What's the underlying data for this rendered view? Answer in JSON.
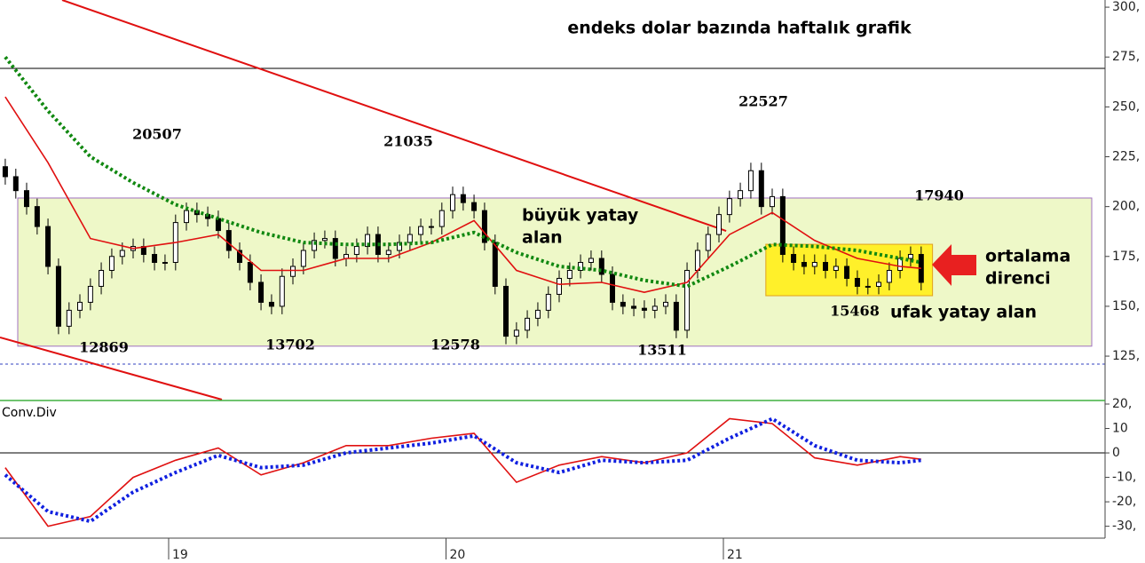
{
  "chart_data": [
    {
      "type": "candlestick",
      "title": "endeks dolar bazında haftalık grafik",
      "xlim": [
        2018.392,
        2022.376
      ],
      "ylim": [
        103.2,
        303.6
      ],
      "yticks": [
        {
          "value": 125,
          "label": "125,"
        },
        {
          "value": 150,
          "label": "150,"
        },
        {
          "value": 175,
          "label": "175,"
        },
        {
          "value": 200,
          "label": "200,"
        },
        {
          "value": 225,
          "label": "225,"
        },
        {
          "value": 250,
          "label": "250,"
        },
        {
          "value": 275,
          "label": "275,"
        },
        {
          "value": 300,
          "label": "300,"
        }
      ],
      "up_color": "#ffffff",
      "down_color": "#000000",
      "x": [
        2018.411,
        2018.449,
        2018.488,
        2018.526,
        2018.565,
        2018.603,
        2018.641,
        2018.68,
        2018.718,
        2018.757,
        2018.795,
        2018.833,
        2018.872,
        2018.91,
        2018.949,
        2018.987,
        2019.025,
        2019.064,
        2019.102,
        2019.141,
        2019.179,
        2019.217,
        2019.256,
        2019.294,
        2019.333,
        2019.371,
        2019.409,
        2019.448,
        2019.486,
        2019.525,
        2019.563,
        2019.601,
        2019.64,
        2019.678,
        2019.717,
        2019.755,
        2019.793,
        2019.832,
        2019.87,
        2019.909,
        2019.947,
        2019.985,
        2020.024,
        2020.062,
        2020.101,
        2020.139,
        2020.177,
        2020.216,
        2020.254,
        2020.293,
        2020.331,
        2020.369,
        2020.408,
        2020.446,
        2020.485,
        2020.523,
        2020.561,
        2020.6,
        2020.638,
        2020.677,
        2020.715,
        2020.753,
        2020.792,
        2020.83,
        2020.869,
        2020.907,
        2020.945,
        2020.984,
        2021.022,
        2021.061,
        2021.099,
        2021.137,
        2021.176,
        2021.214,
        2021.253,
        2021.291,
        2021.329,
        2021.368,
        2021.406,
        2021.445,
        2021.483,
        2021.521,
        2021.56,
        2021.598,
        2021.637,
        2021.675,
        2021.713
      ],
      "open": [
        220,
        215,
        208,
        200,
        190,
        170,
        140,
        148,
        152,
        160,
        168,
        175,
        178,
        180,
        176,
        172,
        172,
        192,
        198,
        196,
        194,
        188,
        178,
        172,
        162,
        152,
        150,
        165,
        170,
        178,
        183,
        184,
        174,
        176,
        180,
        186,
        176,
        178,
        182,
        186,
        190,
        190,
        198,
        206,
        202,
        198,
        182,
        160,
        135,
        138,
        144,
        148,
        156,
        164,
        168,
        172,
        174,
        166,
        152,
        150,
        149,
        148,
        150,
        152,
        138,
        168,
        178,
        186,
        196,
        204,
        208,
        218,
        200,
        205,
        176,
        172,
        170,
        172,
        168,
        170,
        164,
        160,
        160,
        162,
        168,
        174,
        176
      ],
      "high": [
        224,
        219,
        212,
        204,
        194,
        174,
        152,
        156,
        164,
        172,
        179,
        182,
        184,
        184,
        180,
        176,
        196,
        202,
        202,
        200,
        198,
        192,
        182,
        176,
        166,
        156,
        169,
        174,
        182,
        187,
        188,
        188,
        180,
        184,
        190,
        190,
        182,
        186,
        190,
        194,
        194,
        202,
        210,
        210,
        206,
        202,
        186,
        164,
        142,
        148,
        152,
        160,
        168,
        172,
        176,
        178,
        178,
        170,
        156,
        154,
        153,
        154,
        156,
        156,
        172,
        182,
        190,
        200,
        208,
        212,
        222,
        222,
        209,
        209,
        180,
        176,
        176,
        176,
        174,
        174,
        168,
        164,
        166,
        172,
        178,
        180,
        180
      ],
      "low": [
        211,
        204,
        196,
        186,
        166,
        136,
        136,
        144,
        148,
        156,
        164,
        171,
        174,
        172,
        168,
        168,
        168,
        188,
        192,
        190,
        184,
        174,
        168,
        158,
        148,
        146,
        146,
        161,
        166,
        174,
        179,
        170,
        170,
        172,
        176,
        172,
        172,
        174,
        178,
        182,
        186,
        186,
        194,
        198,
        194,
        178,
        156,
        131,
        131,
        134,
        140,
        144,
        152,
        160,
        164,
        168,
        162,
        148,
        146,
        145,
        144,
        144,
        146,
        134,
        134,
        164,
        174,
        182,
        192,
        200,
        204,
        196,
        196,
        172,
        168,
        166,
        166,
        164,
        164,
        160,
        156,
        156,
        156,
        158,
        164,
        170,
        158
      ],
      "close": [
        215,
        208,
        200,
        190,
        170,
        140,
        148,
        152,
        160,
        168,
        175,
        178,
        180,
        176,
        172,
        172,
        192,
        198,
        196,
        194,
        188,
        178,
        172,
        162,
        152,
        150,
        165,
        170,
        178,
        183,
        184,
        174,
        176,
        180,
        186,
        176,
        178,
        182,
        186,
        190,
        190,
        198,
        206,
        202,
        198,
        182,
        160,
        135,
        138,
        144,
        148,
        156,
        164,
        168,
        172,
        174,
        166,
        152,
        150,
        149,
        148,
        150,
        152,
        138,
        168,
        178,
        186,
        196,
        204,
        208,
        218,
        200,
        205,
        176,
        172,
        170,
        172,
        168,
        170,
        164,
        160,
        160,
        162,
        168,
        174,
        176,
        162
      ],
      "series": [
        {
          "color": "#e01010",
          "dash": "solid",
          "x": [
            2018.411,
            2018.565,
            2018.718,
            2018.872,
            2019.025,
            2019.179,
            2019.333,
            2019.486,
            2019.64,
            2019.793,
            2019.947,
            2020.101,
            2020.254,
            2020.408,
            2020.561,
            2020.715,
            2020.869,
            2021.022,
            2021.176,
            2021.329,
            2021.483,
            2021.637,
            2021.713
          ],
          "values": [
            255,
            222,
            184,
            179,
            182,
            186,
            168,
            168,
            174,
            174,
            182,
            193,
            168,
            161,
            162,
            157,
            162,
            186,
            197,
            183,
            174,
            170,
            169
          ]
        },
        {
          "color": "#118811",
          "dash": "dotted",
          "x": [
            2018.411,
            2018.565,
            2018.718,
            2018.872,
            2019.025,
            2019.179,
            2019.333,
            2019.486,
            2019.64,
            2019.793,
            2019.947,
            2020.101,
            2020.254,
            2020.408,
            2020.561,
            2020.715,
            2020.869,
            2021.022,
            2021.176,
            2021.329,
            2021.483,
            2021.637,
            2021.713
          ],
          "values": [
            275,
            248,
            225,
            212,
            201,
            194,
            187,
            182,
            181,
            181,
            182,
            187,
            177,
            170,
            168,
            163,
            160,
            170,
            181,
            180,
            178,
            174,
            172
          ]
        }
      ],
      "trendlines": [
        {
          "color": "#e01010",
          "x": [
            2018.616,
            2021.01
          ],
          "y": [
            303.6,
            187.8
          ]
        },
        {
          "color": "#e01010",
          "x": [
            2018.392,
            2019.192
          ],
          "y": [
            134.4,
            103.2
          ]
        }
      ],
      "hlines": [
        {
          "value": 269.3,
          "color": "#000000",
          "dash": "solid"
        },
        {
          "value": 121,
          "color": "#3040c0",
          "dash": "dashed"
        }
      ],
      "zones": [
        {
          "x": [
            2018.456,
            2022.328
          ],
          "y": [
            130.0,
            204.3
          ],
          "color": "#eef8c8",
          "border": "#a070c0"
        },
        {
          "x": [
            2021.153,
            2021.754
          ],
          "y": [
            155.3,
            181.1
          ],
          "color": "#fff02a",
          "border": "#e0a020"
        }
      ],
      "annotations": [
        "20507",
        "21035",
        "22527",
        "17940",
        "12869",
        "13702",
        "12578",
        "13511",
        "15468",
        "büyük yatay",
        "alan",
        "ortalama",
        "direnci",
        "ufak yatay alan"
      ]
    },
    {
      "type": "line",
      "title": "Conv.Div",
      "xlim": [
        2018.392,
        2022.376
      ],
      "ylim": [
        -34.5,
        20
      ],
      "xticks": [
        {
          "value": 2019,
          "label": "19"
        },
        {
          "value": 2020,
          "label": "20"
        },
        {
          "value": 2021,
          "label": "21"
        }
      ],
      "yticks": [
        {
          "value": -30,
          "label": "-30,"
        },
        {
          "value": -20,
          "label": "-20,"
        },
        {
          "value": -10,
          "label": "-10,"
        },
        0,
        10,
        {
          "value": 20,
          "label": "20,"
        }
      ],
      "hlines": [
        {
          "value": 0,
          "color": "#000000",
          "dash": "solid"
        }
      ],
      "series": [
        {
          "color": "#e01010",
          "dash": "solid",
          "x": [
            2018.411,
            2018.565,
            2018.718,
            2018.872,
            2019.025,
            2019.179,
            2019.333,
            2019.486,
            2019.64,
            2019.793,
            2019.947,
            2020.101,
            2020.254,
            2020.408,
            2020.561,
            2020.715,
            2020.869,
            2021.022,
            2021.176,
            2021.329,
            2021.483,
            2021.637,
            2021.713
          ],
          "values": [
            -6,
            -30,
            -26,
            -10,
            -3,
            2,
            -9,
            -4,
            3,
            3,
            6,
            8,
            -12,
            -5,
            -1.5,
            -4,
            0,
            14,
            12,
            -2,
            -5,
            -1.5,
            -2.6
          ]
        },
        {
          "color": "#1020e0",
          "dash": "dotted",
          "x": [
            2018.411,
            2018.565,
            2018.718,
            2018.872,
            2019.025,
            2019.179,
            2019.333,
            2019.486,
            2019.64,
            2019.793,
            2019.947,
            2020.101,
            2020.254,
            2020.408,
            2020.561,
            2020.715,
            2020.869,
            2021.022,
            2021.176,
            2021.329,
            2021.483,
            2021.637,
            2021.713
          ],
          "values": [
            -9,
            -24,
            -28,
            -16,
            -8,
            -1,
            -6,
            -5,
            0,
            2,
            4,
            7,
            -4,
            -8,
            -3,
            -4,
            -3,
            6,
            14,
            3,
            -3,
            -4,
            -3
          ]
        }
      ]
    }
  ]
}
